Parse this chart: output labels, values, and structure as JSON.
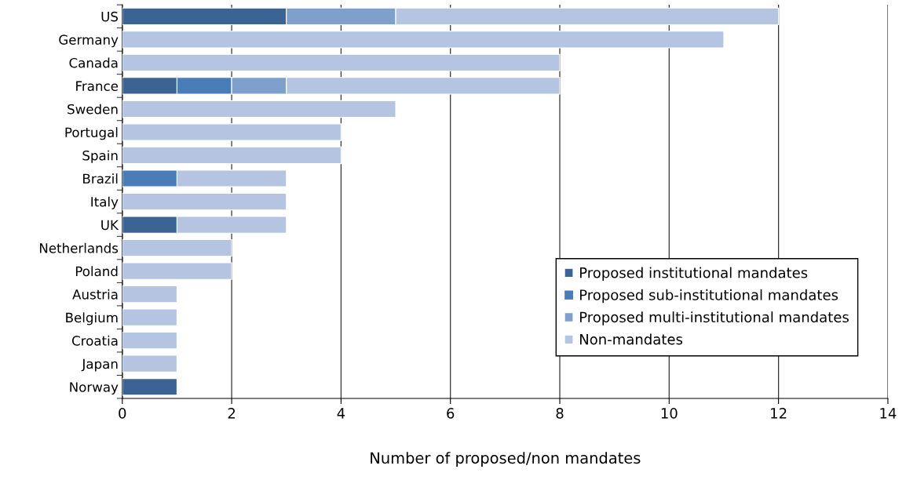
{
  "chart_data": {
    "type": "bar",
    "orientation": "horizontal",
    "stacked": true,
    "xlabel": "Number of proposed/non mandates",
    "categories": [
      "US",
      "Germany",
      "Canada",
      "France",
      "Sweden",
      "Portugal",
      "Spain",
      "Brazil",
      "Italy",
      "UK",
      "Netherlands",
      "Poland",
      "Austria",
      "Belgium",
      "Croatia",
      "Japan",
      "Norway"
    ],
    "series": [
      {
        "name": "Proposed institutional mandates",
        "color": "#3b6494",
        "values": [
          3,
          0,
          0,
          1,
          0,
          0,
          0,
          0,
          0,
          1,
          0,
          0,
          0,
          0,
          0,
          0,
          1
        ]
      },
      {
        "name": "Proposed sub-institutional mandates",
        "color": "#4a7db8",
        "values": [
          0,
          0,
          0,
          1,
          0,
          0,
          0,
          1,
          0,
          0,
          0,
          0,
          0,
          0,
          0,
          0,
          0
        ]
      },
      {
        "name": "Proposed multi-institutional mandates",
        "color": "#7f9fcd",
        "values": [
          2,
          0,
          0,
          1,
          0,
          0,
          0,
          0,
          0,
          0,
          0,
          0,
          0,
          0,
          0,
          0,
          0
        ]
      },
      {
        "name": "Non-mandates",
        "color": "#b5c5e1",
        "values": [
          7,
          11,
          8,
          5,
          5,
          4,
          4,
          2,
          3,
          2,
          2,
          2,
          1,
          1,
          1,
          1,
          0
        ]
      }
    ],
    "xlim": [
      0,
      14
    ],
    "xticks": [
      0,
      2,
      4,
      6,
      8,
      10,
      12,
      14
    ],
    "grid": "x",
    "legend": "bottom right"
  }
}
